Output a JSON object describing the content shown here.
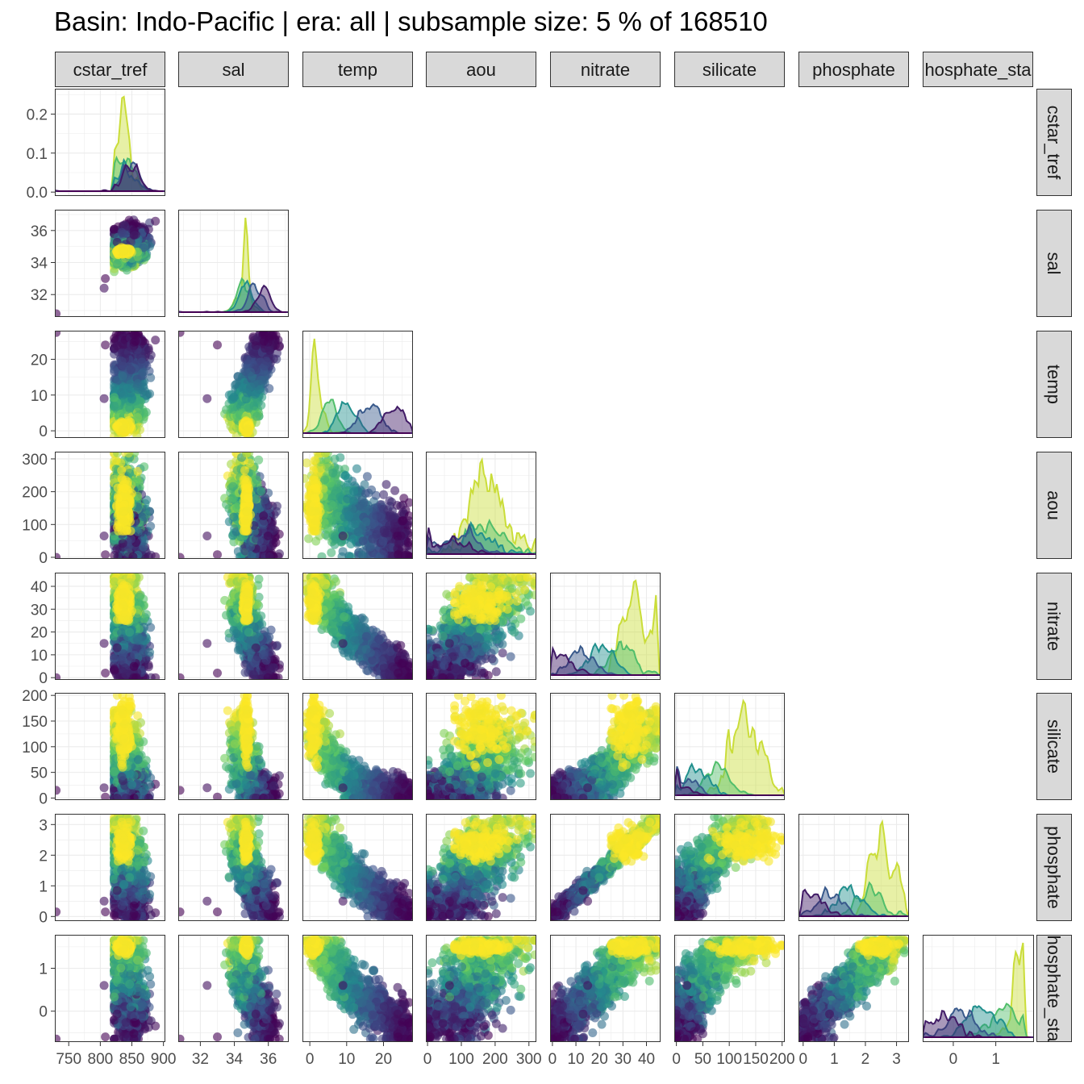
{
  "title": "Basin: Indo-Pacific | era: all | subsample size: 5 % of 168510",
  "chart_data": {
    "type": "scatter",
    "layout": "pairs-matrix (lower triangle scatter, diagonal density)",
    "title": "Basin: Indo-Pacific | era: all | subsample size: 5 % of 168510",
    "variables": [
      "cstar_tref",
      "sal",
      "temp",
      "aou",
      "nitrate",
      "silicate",
      "phosphate",
      "phosphate_star"
    ],
    "column_strip_labels": [
      "cstar_tref",
      "sal",
      "temp",
      "aou",
      "nitrate",
      "silicate",
      "phosphate",
      "hosphate_sta"
    ],
    "row_strip_labels": [
      "cstar_tref",
      "sal",
      "temp",
      "aou",
      "nitrate",
      "silicate",
      "phosphate",
      "hosphate_sta"
    ],
    "x_ticks": [
      [
        "750",
        "800",
        "850",
        "900"
      ],
      [
        "32",
        "34",
        "36"
      ],
      [
        "0",
        "10",
        "20"
      ],
      [
        "0",
        "100",
        "200",
        "300"
      ],
      [
        "0",
        "10",
        "20",
        "30",
        "40"
      ],
      [
        "0",
        "50",
        "100",
        "150",
        "200"
      ],
      [
        "0",
        "1",
        "2",
        "3"
      ],
      [
        "0",
        "1"
      ]
    ],
    "x_tick_values": [
      [
        750,
        800,
        850,
        900
      ],
      [
        32,
        34,
        36
      ],
      [
        0,
        10,
        20
      ],
      [
        0,
        100,
        200,
        300
      ],
      [
        0,
        10,
        20,
        30,
        40
      ],
      [
        0,
        50,
        100,
        150,
        200
      ],
      [
        0,
        1,
        2,
        3
      ],
      [
        0,
        1
      ]
    ],
    "x_ranges": [
      [
        728,
        903
      ],
      [
        30.7,
        37.2
      ],
      [
        -2,
        28
      ],
      [
        -5,
        322
      ],
      [
        -1,
        46
      ],
      [
        -4,
        205
      ],
      [
        -0.15,
        3.4
      ],
      [
        -0.72,
        1.88
      ]
    ],
    "y_ticks": [
      [
        "0.0",
        "0.1",
        "0.2"
      ],
      [
        "32",
        "34",
        "36"
      ],
      [
        "0",
        "10",
        "20"
      ],
      [
        "0",
        "100",
        "200",
        "300"
      ],
      [
        "0",
        "10",
        "20",
        "30",
        "40"
      ],
      [
        "0",
        "50",
        "100",
        "150",
        "200"
      ],
      [
        "0",
        "1",
        "2",
        "3"
      ],
      [
        "0",
        "1"
      ]
    ],
    "y_tick_values": [
      [
        0.0,
        0.1,
        0.2
      ],
      [
        32,
        34,
        36
      ],
      [
        0,
        10,
        20
      ],
      [
        0,
        100,
        200,
        300
      ],
      [
        0,
        10,
        20,
        30,
        40
      ],
      [
        0,
        50,
        100,
        150,
        200
      ],
      [
        0,
        1,
        2,
        3
      ],
      [
        0,
        1
      ]
    ],
    "y_ranges": [
      [
        -0.01,
        0.265
      ],
      [
        30.6,
        37.3
      ],
      [
        -2,
        28
      ],
      [
        -5,
        322
      ],
      [
        -1,
        46
      ],
      [
        -4,
        205
      ],
      [
        -0.15,
        3.35
      ],
      [
        -0.72,
        1.78
      ]
    ],
    "color_scale": [
      "#440154",
      "#3b528b",
      "#21908d",
      "#5dc963",
      "#fde725"
    ],
    "color_encoding": "era (viridis, no legend shown)",
    "point_alpha": 0.6,
    "grid": true,
    "legend": "none",
    "approx_variable_ranges": {
      "cstar_tref": [
        730,
        900
      ],
      "sal": [
        30.8,
        37
      ],
      "temp": [
        -1.5,
        27.5
      ],
      "aou": [
        0,
        320
      ],
      "nitrate": [
        0,
        45
      ],
      "silicate": [
        0,
        200
      ],
      "phosphate": [
        0,
        3.3
      ],
      "phosphate_star": [
        -0.65,
        1.7
      ]
    },
    "density_peaks": {
      "cstar_tref": 0.26,
      "sal": "sharp peak near 34.7",
      "temp": "sharp peak near 1.5",
      "aou": "peaks near 125, 150, 200, 240",
      "nitrate": "sharp peak near 31",
      "silicate": "yellow peak near 0, purple peaks near 95 and 145",
      "phosphate": "sharp peak near 2.1",
      "phosphate_star": "sharp peak near 1.45"
    }
  }
}
